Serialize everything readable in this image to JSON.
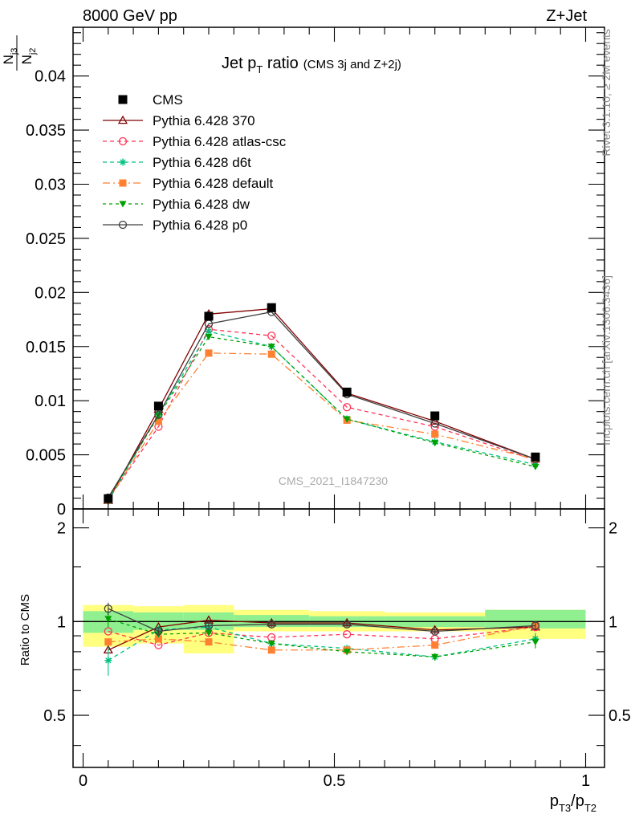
{
  "header": {
    "left": "8000 GeV pp",
    "right": "Z+Jet"
  },
  "side": {
    "rivet": "Rivet 3.1.10, ≥ 2M events",
    "mcplots": "mcplots.cern.ch [arXiv:1306.3436]"
  },
  "chart_data": {
    "type": "line",
    "title": "Jet p",
    "title_sub": "T",
    "title_rest": " ratio",
    "title_small": "(CMS 3j and Z+2j)",
    "watermark": "CMS_2021_I1847230",
    "ylabel_main": {
      "num": "N",
      "num_sub": "j3",
      "den": "N",
      "den_sub": "j2"
    },
    "ylabel_ratio": "Ratio to CMS",
    "xlabel": {
      "a": "p",
      "a_sub": "T3",
      "slash": "/",
      "b": "p",
      "b_sub": "T2"
    },
    "xlim": [
      0,
      1
    ],
    "ylim_main": [
      0,
      0.0445
    ],
    "ylim_ratio": [
      0.34,
      2.3
    ],
    "x_ticks": [
      0,
      0.5,
      1
    ],
    "x_tick_labels": [
      "0",
      "0.5",
      "1"
    ],
    "y_ticks_main": [
      0,
      0.005,
      0.01,
      0.015,
      0.02,
      0.025,
      0.03,
      0.035,
      0.04
    ],
    "y_tick_labels_main": [
      "0",
      "0.005",
      "0.01",
      "0.015",
      "0.02",
      "0.025",
      "0.03",
      "0.035",
      "0.04"
    ],
    "y_ticks_ratio": [
      0.5,
      1,
      2
    ],
    "y_tick_labels_ratio": [
      "0.5",
      "1",
      "2"
    ],
    "bins": [
      0,
      0.1,
      0.2,
      0.3,
      0.45,
      0.6,
      0.8,
      1.0
    ],
    "x": [
      0.05,
      0.15,
      0.25,
      0.375,
      0.525,
      0.7,
      0.9
    ],
    "data": {
      "name": "CMS",
      "color": "#000000",
      "values": [
        0.00095,
        0.0095,
        0.0178,
        0.0186,
        0.0108,
        0.0086,
        0.0048
      ],
      "band_inner": [
        [
          0.92,
          1.08
        ],
        [
          0.94,
          1.07
        ],
        [
          0.94,
          1.07
        ],
        [
          0.96,
          1.05
        ],
        [
          0.96,
          1.04
        ],
        [
          0.96,
          1.04
        ],
        [
          0.95,
          1.09
        ]
      ],
      "band_outer": [
        [
          0.83,
          1.13
        ],
        [
          0.85,
          1.12
        ],
        [
          0.79,
          1.13
        ],
        [
          0.93,
          1.09
        ],
        [
          0.93,
          1.08
        ],
        [
          0.93,
          1.07
        ],
        [
          0.88,
          1.09
        ]
      ]
    },
    "series": [
      {
        "name": "Pythia 6.428 370",
        "color": "#800000",
        "dash": "",
        "marker": "triangle-open",
        "values": [
          0.00078,
          0.0092,
          0.018,
          0.0185,
          0.0107,
          0.0081,
          0.0046
        ],
        "ratio": [
          0.81,
          0.96,
          1.01,
          0.99,
          0.99,
          0.94,
          0.96
        ]
      },
      {
        "name": "Pythia 6.428 atlas-csc",
        "color": "#ff3355",
        "dash": "5,4",
        "marker": "circle-open",
        "values": [
          0.00088,
          0.0076,
          0.0166,
          0.016,
          0.0094,
          0.0076,
          0.0045
        ],
        "ratio": [
          0.93,
          0.84,
          0.92,
          0.89,
          0.91,
          0.88,
          0.96
        ]
      },
      {
        "name": "Pythia 6.428 d6t",
        "color": "#00c080",
        "dash": "5,4",
        "marker": "star",
        "values": [
          0.00072,
          0.0087,
          0.0164,
          0.015,
          0.0083,
          0.0062,
          0.0041
        ],
        "ratio": [
          0.75,
          0.94,
          0.96,
          0.85,
          0.82,
          0.77,
          0.88
        ]
      },
      {
        "name": "Pythia 6.428 default",
        "color": "#ff8030",
        "dash": "9,4,2,4",
        "marker": "square",
        "values": [
          0.00083,
          0.0081,
          0.0144,
          0.0143,
          0.0082,
          0.0069,
          0.0046
        ],
        "ratio": [
          0.86,
          0.88,
          0.86,
          0.81,
          0.81,
          0.84,
          0.97
        ]
      },
      {
        "name": "Pythia 6.428 dw",
        "color": "#00a000",
        "dash": "4,4",
        "marker": "triangle-down",
        "values": [
          0.00098,
          0.0086,
          0.0159,
          0.015,
          0.0083,
          0.0061,
          0.0039
        ],
        "ratio": [
          1.02,
          0.91,
          0.92,
          0.85,
          0.8,
          0.77,
          0.86
        ]
      },
      {
        "name": "Pythia 6.428 p0",
        "color": "#404040",
        "dash": "",
        "marker": "circle-open",
        "values": [
          0.00105,
          0.0087,
          0.0171,
          0.0182,
          0.0106,
          0.0079,
          0.0046
        ],
        "ratio": [
          1.1,
          0.93,
          0.97,
          0.98,
          0.98,
          0.93,
          0.97
        ]
      }
    ],
    "ratio_errors": {
      "Pythia 6.428 d6t": [
        0.08,
        0.02,
        0.02,
        0.02,
        0.02,
        0.02,
        0.04
      ],
      "Pythia 6.428 dw": [
        0.06,
        0.02,
        0.02,
        0.02,
        0.02,
        0.02,
        0.04
      ],
      "Pythia 6.428 p0": [
        0.05,
        0.02,
        0.02,
        0.02,
        0.02,
        0.02,
        0.02
      ]
    },
    "legend_position": "top-left"
  }
}
